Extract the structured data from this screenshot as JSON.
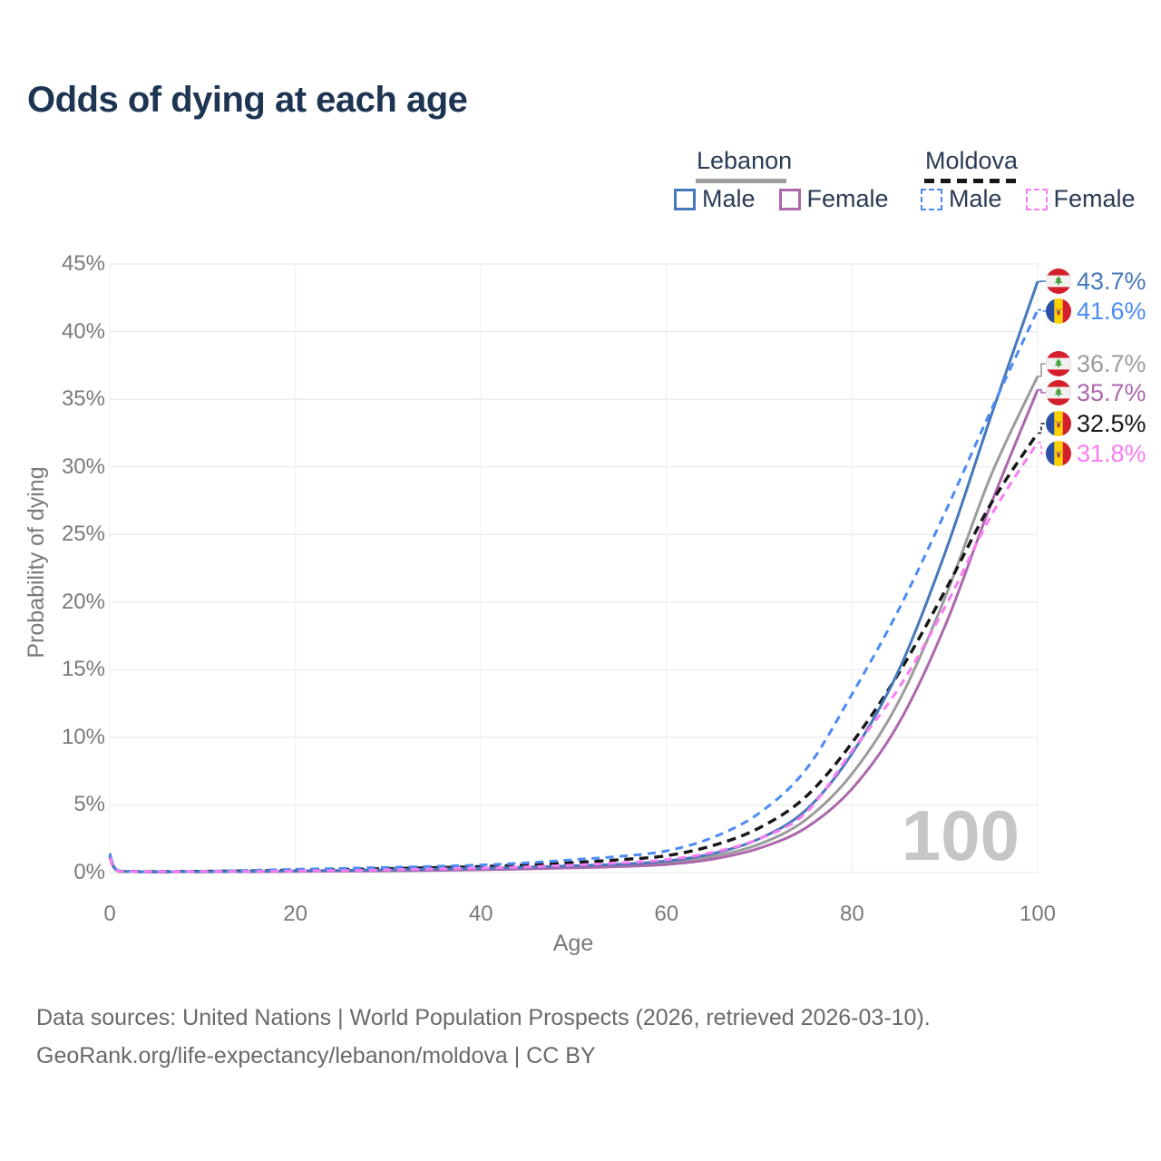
{
  "page": {
    "title": "Odds of dying at each age"
  },
  "legend": {
    "countries": [
      {
        "name": "Lebanon",
        "line_style": "solid",
        "underline_color": "#9e9e9e",
        "entries": [
          {
            "label": "Male",
            "color": "#4679ba"
          },
          {
            "label": "Female",
            "color": "#ac68ac"
          }
        ]
      },
      {
        "name": "Moldova",
        "line_style": "dashed",
        "underline_color": "#161616",
        "entries": [
          {
            "label": "Male",
            "color": "#4c8bf5"
          },
          {
            "label": "Female",
            "color": "#fa7cf2"
          }
        ]
      }
    ]
  },
  "watermark": "100",
  "axes": {
    "y_title": "Probability of dying",
    "x_title": "Age"
  },
  "chart_data": {
    "type": "line",
    "title": "Odds of dying at each age",
    "xlabel": "Age",
    "ylabel": "Probability of dying",
    "xlim": [
      0,
      100
    ],
    "ylim": [
      0,
      45
    ],
    "x_ticks": [
      0,
      20,
      40,
      60,
      80,
      100
    ],
    "y_ticks": [
      "0%",
      "5%",
      "10%",
      "15%",
      "20%",
      "25%",
      "30%",
      "35%",
      "40%",
      "45%"
    ],
    "y_tick_step_pct": 5,
    "grid": true,
    "legend_position": "top-right",
    "x": [
      0,
      1,
      5,
      10,
      15,
      20,
      25,
      30,
      35,
      40,
      45,
      50,
      55,
      60,
      65,
      70,
      75,
      80,
      85,
      90,
      95,
      100
    ],
    "series": [
      {
        "id": "lebanon-male",
        "name": "Lebanon Male",
        "country": "Lebanon",
        "sex": "Male",
        "flag": "lebanon",
        "color": "#4679ba",
        "dash": "solid",
        "end_label": "43.7%",
        "values": [
          1.4,
          0.1,
          0.05,
          0.06,
          0.09,
          0.13,
          0.16,
          0.2,
          0.25,
          0.32,
          0.4,
          0.5,
          0.62,
          0.85,
          1.4,
          2.5,
          4.6,
          8.8,
          14.9,
          23.6,
          33.8,
          43.7
        ]
      },
      {
        "id": "moldova-male",
        "name": "Moldova Male",
        "country": "Moldova",
        "sex": "Male",
        "flag": "moldova",
        "color": "#4c8bf5",
        "dash": "dashed",
        "end_label": "41.6%",
        "values": [
          1.3,
          0.12,
          0.08,
          0.1,
          0.16,
          0.24,
          0.31,
          0.38,
          0.46,
          0.56,
          0.72,
          0.95,
          1.2,
          1.6,
          2.6,
          4.4,
          7.6,
          13.2,
          19.4,
          26.6,
          34.2,
          41.6
        ]
      },
      {
        "id": "lebanon-both",
        "name": "Lebanon Both sexes",
        "country": "Lebanon",
        "sex": "Both",
        "flag": "lebanon",
        "color": "#9c9c9c",
        "dash": "solid",
        "end_label": "36.7%",
        "values": [
          1.3,
          0.09,
          0.05,
          0.06,
          0.08,
          0.11,
          0.13,
          0.16,
          0.2,
          0.26,
          0.33,
          0.42,
          0.52,
          0.72,
          1.2,
          2.1,
          3.9,
          7.3,
          12.6,
          20.3,
          29.4,
          36.7
        ]
      },
      {
        "id": "lebanon-female",
        "name": "Lebanon Female",
        "country": "Lebanon",
        "sex": "Female",
        "flag": "lebanon",
        "color": "#ac68ac",
        "dash": "solid",
        "end_label": "35.7%",
        "values": [
          1.2,
          0.08,
          0.04,
          0.05,
          0.06,
          0.09,
          0.11,
          0.13,
          0.16,
          0.21,
          0.27,
          0.35,
          0.44,
          0.6,
          1.0,
          1.8,
          3.3,
          6.2,
          11.0,
          18.2,
          27.3,
          35.7
        ]
      },
      {
        "id": "moldova-both",
        "name": "Moldova Both sexes",
        "country": "Moldova",
        "sex": "Both",
        "flag": "moldova",
        "color": "#161616",
        "dash": "dashed",
        "end_label": "32.5%",
        "values": [
          1.2,
          0.11,
          0.07,
          0.09,
          0.12,
          0.18,
          0.23,
          0.29,
          0.36,
          0.44,
          0.56,
          0.74,
          0.95,
          1.25,
          2.0,
          3.3,
          5.6,
          9.6,
          14.7,
          20.8,
          27.3,
          32.5
        ]
      },
      {
        "id": "moldova-female",
        "name": "Moldova Female",
        "country": "Moldova",
        "sex": "Female",
        "flag": "moldova",
        "color": "#fa7cf2",
        "dash": "dashed",
        "end_label": "31.8%",
        "values": [
          1.1,
          0.1,
          0.06,
          0.08,
          0.09,
          0.12,
          0.15,
          0.2,
          0.26,
          0.33,
          0.42,
          0.55,
          0.72,
          0.95,
          1.5,
          2.5,
          4.4,
          9.0,
          13.6,
          19.6,
          26.4,
          31.8
        ]
      }
    ]
  },
  "source": {
    "line1": "Data sources: United Nations | World Population Prospects (2026, retrieved 2026-03-10).",
    "line2": "GeoRank.org/life-expectancy/lebanon/moldova | CC BY"
  }
}
